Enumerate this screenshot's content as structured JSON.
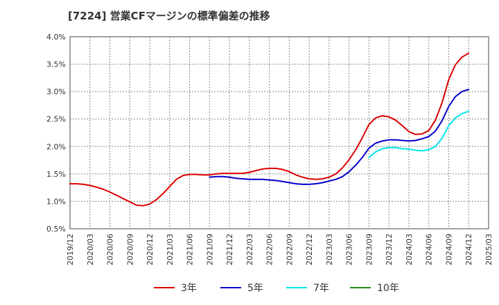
{
  "chart_data": {
    "type": "line",
    "title": "[7224]  営業CFマージンの標準偏差の推移",
    "xlabel": "",
    "ylabel": "",
    "x_ticks": [
      "2019/12",
      "2020/03",
      "2020/06",
      "2020/09",
      "2020/12",
      "2021/03",
      "2021/06",
      "2021/09",
      "2021/12",
      "2022/03",
      "2022/06",
      "2022/09",
      "2022/12",
      "2023/03",
      "2023/06",
      "2023/09",
      "2023/12",
      "2024/03",
      "2024/06",
      "2024/09",
      "2024/12",
      "2025/03"
    ],
    "y_ticks": [
      "0.5%",
      "1.0%",
      "1.5%",
      "2.0%",
      "2.5%",
      "3.0%",
      "3.5%",
      "4.0%"
    ],
    "ylim": [
      0.5,
      4.0
    ],
    "grid": true,
    "legend_position": "bottom",
    "series": [
      {
        "name": "3年",
        "color": "#dd0000",
        "points": [
          [
            "2019/12",
            1.32
          ],
          [
            "2020/01",
            1.32
          ],
          [
            "2020/02",
            1.31
          ],
          [
            "2020/03",
            1.29
          ],
          [
            "2020/04",
            1.26
          ],
          [
            "2020/05",
            1.22
          ],
          [
            "2020/06",
            1.17
          ],
          [
            "2020/07",
            1.11
          ],
          [
            "2020/08",
            1.05
          ],
          [
            "2020/09",
            0.99
          ],
          [
            "2020/10",
            0.93
          ],
          [
            "2020/11",
            0.92
          ],
          [
            "2020/12",
            0.95
          ],
          [
            "2021/01",
            1.03
          ],
          [
            "2021/02",
            1.14
          ],
          [
            "2021/03",
            1.27
          ],
          [
            "2021/04",
            1.4
          ],
          [
            "2021/05",
            1.47
          ],
          [
            "2021/06",
            1.49
          ],
          [
            "2021/07",
            1.49
          ],
          [
            "2021/08",
            1.48
          ],
          [
            "2021/09",
            1.48
          ],
          [
            "2021/10",
            1.5
          ],
          [
            "2021/11",
            1.51
          ],
          [
            "2021/12",
            1.51
          ],
          [
            "2022/01",
            1.51
          ],
          [
            "2022/02",
            1.51
          ],
          [
            "2022/03",
            1.53
          ],
          [
            "2022/04",
            1.56
          ],
          [
            "2022/05",
            1.59
          ],
          [
            "2022/06",
            1.6
          ],
          [
            "2022/07",
            1.6
          ],
          [
            "2022/08",
            1.58
          ],
          [
            "2022/09",
            1.54
          ],
          [
            "2022/10",
            1.48
          ],
          [
            "2022/11",
            1.44
          ],
          [
            "2022/12",
            1.41
          ],
          [
            "2023/01",
            1.4
          ],
          [
            "2023/02",
            1.41
          ],
          [
            "2023/03",
            1.44
          ],
          [
            "2023/04",
            1.5
          ],
          [
            "2023/05",
            1.61
          ],
          [
            "2023/06",
            1.76
          ],
          [
            "2023/07",
            1.94
          ],
          [
            "2023/08",
            2.16
          ],
          [
            "2023/09",
            2.4
          ],
          [
            "2023/10",
            2.52
          ],
          [
            "2023/11",
            2.56
          ],
          [
            "2023/12",
            2.54
          ],
          [
            "2024/01",
            2.48
          ],
          [
            "2024/02",
            2.38
          ],
          [
            "2024/03",
            2.27
          ],
          [
            "2024/04",
            2.22
          ],
          [
            "2024/05",
            2.23
          ],
          [
            "2024/06",
            2.29
          ],
          [
            "2024/07",
            2.48
          ],
          [
            "2024/08",
            2.8
          ],
          [
            "2024/09",
            3.22
          ],
          [
            "2024/10",
            3.49
          ],
          [
            "2024/11",
            3.63
          ],
          [
            "2024/12",
            3.7
          ]
        ]
      },
      {
        "name": "5年",
        "color": "#0000cc",
        "points": [
          [
            "2021/09",
            1.44
          ],
          [
            "2021/10",
            1.45
          ],
          [
            "2021/11",
            1.45
          ],
          [
            "2021/12",
            1.44
          ],
          [
            "2022/01",
            1.42
          ],
          [
            "2022/02",
            1.41
          ],
          [
            "2022/03",
            1.4
          ],
          [
            "2022/04",
            1.4
          ],
          [
            "2022/05",
            1.4
          ],
          [
            "2022/06",
            1.39
          ],
          [
            "2022/07",
            1.38
          ],
          [
            "2022/08",
            1.36
          ],
          [
            "2022/09",
            1.34
          ],
          [
            "2022/10",
            1.32
          ],
          [
            "2022/11",
            1.31
          ],
          [
            "2022/12",
            1.31
          ],
          [
            "2023/01",
            1.32
          ],
          [
            "2023/02",
            1.34
          ],
          [
            "2023/03",
            1.37
          ],
          [
            "2023/04",
            1.4
          ],
          [
            "2023/05",
            1.45
          ],
          [
            "2023/06",
            1.54
          ],
          [
            "2023/07",
            1.66
          ],
          [
            "2023/08",
            1.8
          ],
          [
            "2023/09",
            1.97
          ],
          [
            "2023/10",
            2.06
          ],
          [
            "2023/11",
            2.1
          ],
          [
            "2023/12",
            2.12
          ],
          [
            "2024/01",
            2.12
          ],
          [
            "2024/02",
            2.11
          ],
          [
            "2024/03",
            2.1
          ],
          [
            "2024/04",
            2.11
          ],
          [
            "2024/05",
            2.14
          ],
          [
            "2024/06",
            2.18
          ],
          [
            "2024/07",
            2.28
          ],
          [
            "2024/08",
            2.47
          ],
          [
            "2024/09",
            2.73
          ],
          [
            "2024/10",
            2.91
          ],
          [
            "2024/11",
            3.0
          ],
          [
            "2024/12",
            3.04
          ]
        ]
      },
      {
        "name": "7年",
        "color": "#00e5ee",
        "points": [
          [
            "2023/09",
            1.8
          ],
          [
            "2023/10",
            1.9
          ],
          [
            "2023/11",
            1.96
          ],
          [
            "2023/12",
            1.98
          ],
          [
            "2024/01",
            1.98
          ],
          [
            "2024/02",
            1.96
          ],
          [
            "2024/03",
            1.95
          ],
          [
            "2024/04",
            1.93
          ],
          [
            "2024/05",
            1.92
          ],
          [
            "2024/06",
            1.94
          ],
          [
            "2024/07",
            2.0
          ],
          [
            "2024/08",
            2.15
          ],
          [
            "2024/09",
            2.38
          ],
          [
            "2024/10",
            2.52
          ],
          [
            "2024/11",
            2.6
          ],
          [
            "2024/12",
            2.64
          ]
        ]
      },
      {
        "name": "10年",
        "color": "#228b22",
        "points": []
      }
    ]
  }
}
